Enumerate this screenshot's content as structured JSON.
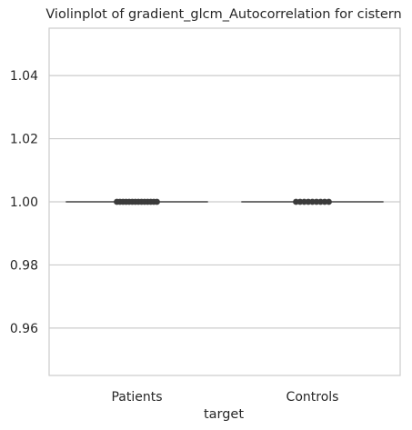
{
  "chart_data": {
    "type": "violin",
    "title": "Violinplot of gradient_glcm_Autocorrelation for cistern",
    "xlabel": "target",
    "ylabel": "",
    "categories": [
      "Patients",
      "Controls"
    ],
    "ylim": [
      0.945,
      1.055
    ],
    "yticks": [
      0.96,
      0.98,
      1.0,
      1.02,
      1.04
    ],
    "ytick_labels": [
      "0.96",
      "0.98",
      "1.00",
      "1.02",
      "1.04"
    ],
    "grid": "horizontal",
    "series": [
      {
        "category": "Patients",
        "median": 1.0,
        "points": [
          1.0,
          1.0,
          1.0,
          1.0,
          1.0,
          1.0,
          1.0,
          1.0,
          1.0,
          1.0,
          1.0,
          1.0,
          1.0,
          1.0
        ]
      },
      {
        "category": "Controls",
        "median": 1.0,
        "points": [
          1.0,
          1.0,
          1.0,
          1.0,
          1.0,
          1.0,
          1.0,
          1.0,
          1.0
        ]
      }
    ],
    "colors": {
      "grid": "#cccccc",
      "frame": "#cccccc",
      "line": "#444444",
      "points": "#3b3b3b",
      "text": "#262626"
    }
  }
}
